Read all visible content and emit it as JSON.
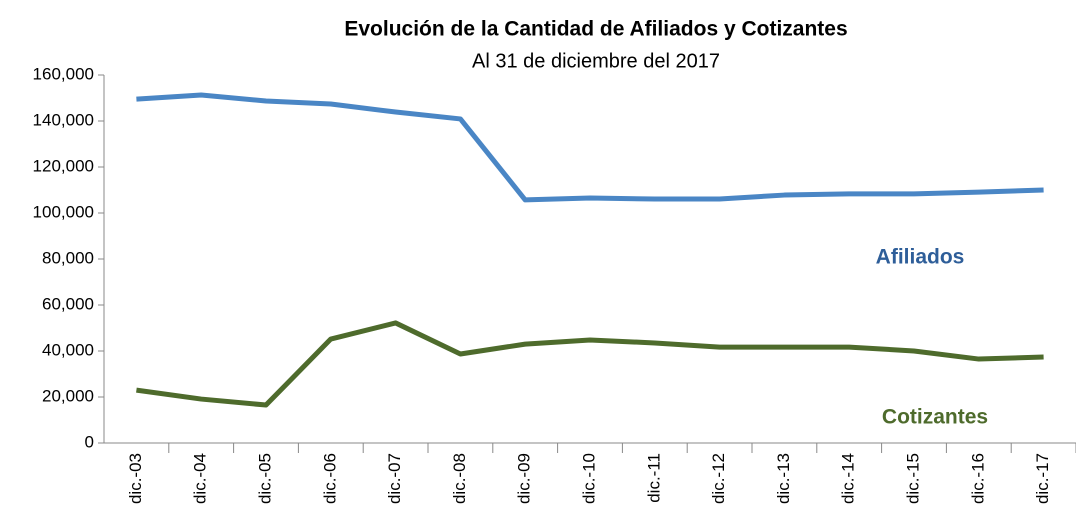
{
  "chart_data": {
    "type": "line",
    "title": "Evolución de la Cantidad de Afiliados y Cotizantes",
    "subtitle": "Al 31 de diciembre del 2017",
    "categories": [
      "dic.-03",
      "dic.-04",
      "dic.-05",
      "dic.-06",
      "dic.-07",
      "dic.-08",
      "dic.-09",
      "dic.-10",
      "dic.-11",
      "dic.-12",
      "dic.-13",
      "dic.-14",
      "dic.-15",
      "dic.-16",
      "dic.-17"
    ],
    "series": [
      {
        "name": "Afiliados",
        "color": "#4a86c5",
        "label_color": "#2e5e99",
        "values": [
          149500,
          151300,
          148700,
          147400,
          143900,
          140900,
          105700,
          106500,
          106100,
          106100,
          107800,
          108300,
          108300,
          109100,
          110000
        ]
      },
      {
        "name": "Cotizantes",
        "color": "#4e6b2c",
        "label_color": "#4e6b2c",
        "values": [
          23000,
          19100,
          16500,
          45200,
          52200,
          38700,
          43000,
          44800,
          43500,
          41700,
          41700,
          41700,
          40000,
          36500,
          37400
        ]
      }
    ],
    "ylim": [
      0,
      160000
    ],
    "yticks": [
      0,
      {
        "value": 20000,
        "label": "20,000"
      },
      {
        "value": 40000,
        "label": "40,000"
      },
      {
        "value": 60000,
        "label": "60,000"
      },
      {
        "value": 80000,
        "label": "80,000"
      },
      {
        "value": 100000,
        "label": "100,000"
      },
      {
        "value": 120000,
        "label": "120,000"
      },
      {
        "value": 140000,
        "label": "140,000"
      },
      {
        "value": 160000,
        "label": "160,000"
      }
    ]
  }
}
